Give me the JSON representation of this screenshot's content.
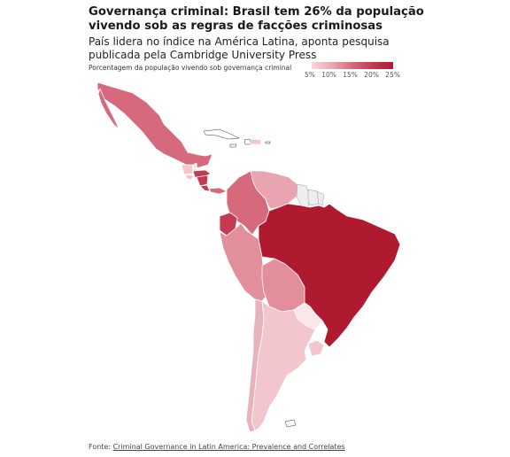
{
  "title": "Governança criminal: Brasil tem 26% da população vivendo sob as regras de facções criminosas",
  "subtitle": "País lidera no índice na América Latina, aponta pesquisa publicada pela Cambridge University Press",
  "legend": {
    "label": "Porcentagem da população vivendo sob governança criminal",
    "ticks": [
      "5%",
      "10%",
      "15%",
      "20%",
      "25%"
    ]
  },
  "source": {
    "prefix": "Fonte: ",
    "link_text": "Criminal Governance in Latin America: Prevalence and Correlates"
  },
  "colors": {
    "highest": "#b01a30",
    "high": "#c53a52",
    "mid_high": "#d6697c",
    "mid": "#e28f9b",
    "low": "#f3c5cc",
    "lowest": "#fbe6ea",
    "no_data": "#eeeeee",
    "border": "#ffffff"
  }
}
